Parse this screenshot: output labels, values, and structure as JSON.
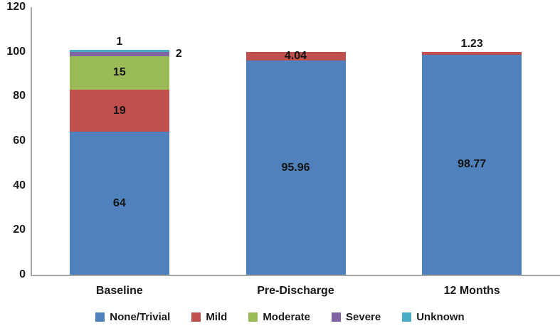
{
  "figure": {
    "background": "#ffffff",
    "axis_color": "#a6a6a6",
    "text_color": "#1a1a1a",
    "value_label_color": "#141414"
  },
  "chart_data": {
    "type": "bar",
    "stacked": true,
    "title": "",
    "xlabel": "",
    "ylabel": "",
    "categories": [
      "Baseline",
      "Pre-Discharge",
      "12 Months"
    ],
    "series": [
      {
        "name": "None/Trivial",
        "color": "#4F81BD",
        "values": [
          64,
          95.96,
          98.77
        ],
        "labels": [
          "64",
          "95.96",
          "98.77"
        ]
      },
      {
        "name": "Mild",
        "color": "#C0504D",
        "values": [
          19,
          4.04,
          1.23
        ],
        "labels": [
          "19",
          "4.04",
          "1.23"
        ]
      },
      {
        "name": "Moderate",
        "color": "#9BBB59",
        "values": [
          15,
          0,
          0
        ],
        "labels": [
          "15",
          "",
          ""
        ]
      },
      {
        "name": "Severe",
        "color": "#8064A2",
        "values": [
          2,
          0,
          0
        ],
        "labels": [
          "2",
          "",
          ""
        ]
      },
      {
        "name": "Unknown",
        "color": "#4BACC6",
        "values": [
          1,
          0,
          0
        ],
        "labels": [
          "1",
          "",
          ""
        ]
      }
    ],
    "ylim": [
      0,
      120
    ],
    "yticks": [
      0,
      20,
      40,
      60,
      80,
      100,
      120
    ],
    "grid": false,
    "legend_position": "bottom",
    "legend": [
      "None/Trivial",
      "Mild",
      "Moderate",
      "Severe",
      "Unknown"
    ]
  }
}
